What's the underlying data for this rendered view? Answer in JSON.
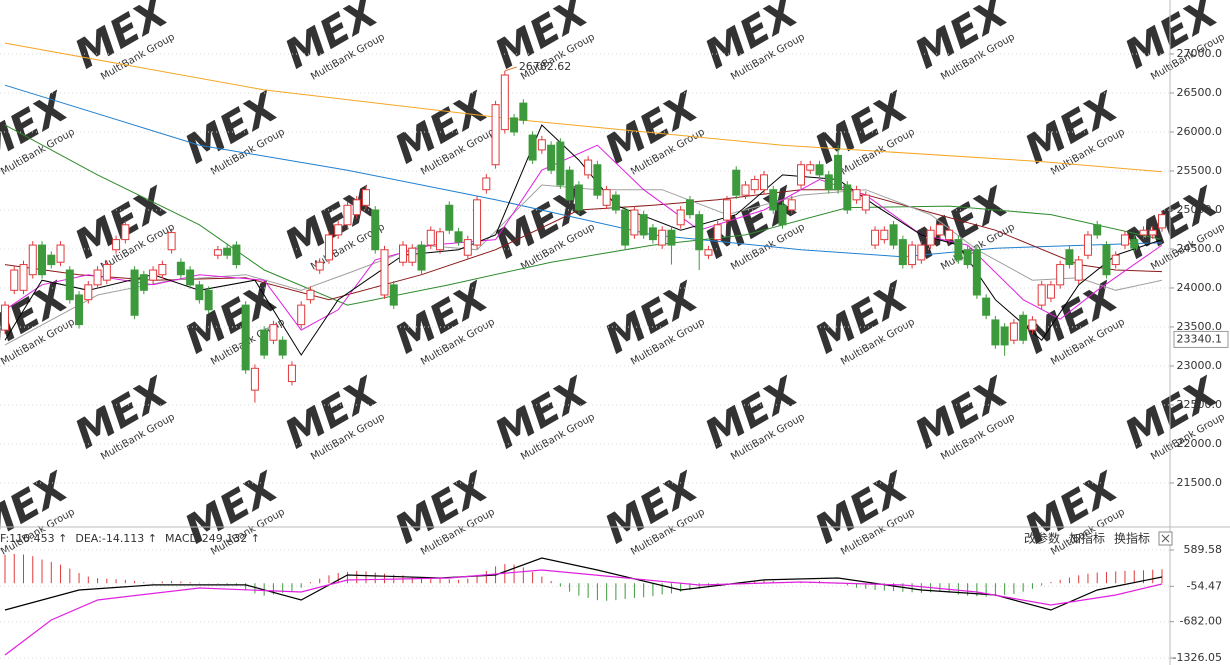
{
  "chart_data": [
    {
      "type": "candlestick",
      "up_color": "#e0393b",
      "down_color": "#3c9a3c",
      "grid": true,
      "ylim": [
        20961,
        27692
      ],
      "yticks": [
        {
          "value": 27000,
          "label": "27000.0"
        },
        {
          "value": 26500,
          "label": "26500.0"
        },
        {
          "value": 26000,
          "label": "26000.0"
        },
        {
          "value": 25500,
          "label": "25500.0"
        },
        {
          "value": 25000,
          "label": "25000.0"
        },
        {
          "value": 24500,
          "label": "24500.0"
        },
        {
          "value": 24000,
          "label": "24000.0"
        },
        {
          "value": 23500,
          "label": "23500.0"
        },
        {
          "value": 23000,
          "label": "23000.0"
        },
        {
          "value": 22500,
          "label": "22500.0"
        },
        {
          "value": 22000,
          "label": "22000.0"
        },
        {
          "value": 21500,
          "label": "21500.0"
        }
      ],
      "last_price": 23340.1,
      "open": [
        23460,
        23970,
        23970,
        24170,
        24550,
        24420,
        24330,
        24230,
        23910,
        23850,
        24040,
        24100,
        24490,
        24620,
        24230,
        24170,
        24100,
        24170,
        24490,
        24330,
        24230,
        24040,
        23970,
        24420,
        24510,
        24550,
        23780,
        22690,
        23460,
        23330,
        23330,
        22800,
        23530,
        23850,
        24230,
        24360,
        24680,
        24810,
        24940,
        25060,
        25000,
        23910,
        24040,
        24330,
        24330,
        24550,
        24550,
        24490,
        25060,
        24720,
        24420,
        24550,
        25260,
        25580,
        26030,
        26180,
        26370,
        25960,
        25770,
        25830,
        25870,
        25510,
        25320,
        25450,
        25580,
        25060,
        25190,
        25000,
        24680,
        24940,
        24770,
        24550,
        24740,
        24810,
        25130,
        24940,
        24420,
        24620,
        24870,
        25510,
        25190,
        25260,
        25260,
        25260,
        25060,
        25000,
        25320,
        25510,
        25580,
        25450,
        25700,
        25320,
        25130,
        25000,
        24550,
        24620,
        24810,
        24620,
        24300,
        24360,
        24550,
        24680,
        24620,
        24620,
        24490,
        24490,
        23870,
        23590,
        23500,
        23330,
        23650,
        23460,
        23780,
        23870,
        24040,
        24490,
        24100,
        24420,
        24810,
        24550,
        24300,
        24550,
        24620,
        24680,
        24680,
        24770
      ],
      "high": [
        23830,
        24280,
        24350,
        24600,
        24600,
        24470,
        24600,
        24280,
        23960,
        24090,
        24280,
        24350,
        24670,
        24860,
        24280,
        24220,
        24280,
        24350,
        24760,
        24380,
        24280,
        24090,
        24020,
        24540,
        24560,
        24600,
        23830,
        23020,
        23510,
        23580,
        23380,
        23060,
        23830,
        24020,
        24380,
        24730,
        24860,
        25110,
        25180,
        25310,
        25050,
        24540,
        24090,
        24600,
        24560,
        24600,
        24790,
        24770,
        25110,
        24770,
        24670,
        25180,
        25460,
        26400,
        26782.62,
        26230,
        26420,
        26010,
        25950,
        25880,
        25920,
        25560,
        25370,
        25690,
        25630,
        25310,
        25240,
        25050,
        25050,
        24990,
        24820,
        24790,
        24790,
        25050,
        25180,
        24990,
        24540,
        24860,
        25180,
        25560,
        25370,
        25440,
        25500,
        25310,
        25110,
        25180,
        25630,
        25630,
        25630,
        25500,
        25830,
        25370,
        25310,
        25240,
        24790,
        24790,
        24860,
        24670,
        24600,
        24600,
        24790,
        24860,
        24790,
        24670,
        24540,
        24540,
        23920,
        23640,
        23550,
        23600,
        23700,
        23640,
        24090,
        24090,
        24350,
        24540,
        24410,
        24730,
        24860,
        24600,
        24470,
        24730,
        24670,
        24790,
        24790,
        24990
      ],
      "low": [
        23410,
        23920,
        23920,
        24120,
        24120,
        24250,
        24280,
        23800,
        23480,
        23800,
        23990,
        24050,
        24440,
        24570,
        23600,
        23920,
        24050,
        24120,
        24440,
        24120,
        23990,
        23800,
        23670,
        24370,
        24370,
        24250,
        22900,
        22530,
        23090,
        23280,
        23090,
        22750,
        23480,
        23800,
        24180,
        24310,
        24630,
        24760,
        24890,
        25010,
        24440,
        23860,
        23730,
        24280,
        24280,
        24180,
        24500,
        24440,
        24690,
        24540,
        24370,
        24500,
        25210,
        25530,
        25980,
        25950,
        26100,
        25590,
        25720,
        25460,
        25270,
        25080,
        24950,
        25400,
        25140,
        25010,
        24950,
        24500,
        24630,
        24630,
        24570,
        24500,
        24300,
        24760,
        24890,
        24230,
        24370,
        24570,
        24820,
        25140,
        25140,
        25210,
        25210,
        24950,
        24760,
        24950,
        25270,
        25460,
        25400,
        25210,
        25210,
        24950,
        25080,
        24950,
        24500,
        24570,
        24500,
        24250,
        24250,
        24310,
        24500,
        24630,
        24570,
        24310,
        24250,
        23860,
        23600,
        23220,
        23130,
        23280,
        23280,
        23410,
        23730,
        23820,
        23990,
        24250,
        24050,
        24370,
        24630,
        24120,
        24250,
        24500,
        24460,
        24630,
        24630,
        24720
      ],
      "close": [
        23780,
        24230,
        24300,
        24550,
        24170,
        24300,
        24550,
        23850,
        23530,
        24040,
        24230,
        24300,
        24620,
        24810,
        23650,
        23970,
        24230,
        24300,
        24710,
        24170,
        24040,
        23850,
        23720,
        24490,
        24420,
        24300,
        22950,
        22970,
        23140,
        23530,
        23140,
        23010,
        23780,
        23970,
        24330,
        24680,
        24810,
        25060,
        25130,
        25260,
        24490,
        24490,
        23780,
        24550,
        24510,
        24230,
        24740,
        24720,
        24740,
        24590,
        24620,
        25130,
        25410,
        26350,
        26730,
        26000,
        26150,
        25640,
        25900,
        25510,
        25320,
        25130,
        25000,
        25640,
        25190,
        25260,
        25000,
        24550,
        25000,
        24680,
        24620,
        24740,
        24550,
        25000,
        24940,
        24490,
        24490,
        24810,
        25130,
        25190,
        25320,
        25390,
        25450,
        25000,
        24810,
        25130,
        25580,
        25580,
        25450,
        25260,
        25260,
        25000,
        25260,
        25190,
        24740,
        24740,
        24550,
        24300,
        24550,
        24550,
        24740,
        24810,
        24740,
        24360,
        24300,
        23910,
        23650,
        23270,
        23270,
        23550,
        23330,
        23590,
        24040,
        24040,
        24300,
        24300,
        24360,
        24680,
        24680,
        24170,
        24420,
        24680,
        24510,
        24740,
        24740,
        24940
      ],
      "lines": [
        {
          "color": "#f5a623",
          "x": [
            0,
            28,
            56,
            84,
            112,
            125
          ],
          "values": [
            27140,
            26540,
            26150,
            25830,
            25620,
            25490
          ]
        },
        {
          "color": "#1f7fd0",
          "x": [
            0,
            21,
            37,
            53,
            70,
            86,
            97,
            107,
            125
          ],
          "values": [
            26600,
            25830,
            25510,
            25130,
            24680,
            24490,
            24400,
            24510,
            24580
          ]
        },
        {
          "color": "#2e8b2e",
          "x": [
            0,
            10,
            21,
            28,
            37,
            48,
            59,
            70,
            80,
            91,
            102,
            113,
            125
          ],
          "values": [
            26090,
            25450,
            24810,
            24230,
            23780,
            24040,
            24330,
            24550,
            24680,
            25030,
            25050,
            24940,
            24620
          ]
        },
        {
          "color": "#8b1a1a",
          "x": [
            0,
            8,
            16,
            26,
            35,
            45,
            53,
            62,
            70,
            77,
            86,
            91,
            99,
            107,
            116,
            120,
            125
          ],
          "values": [
            24300,
            24170,
            24100,
            24130,
            23850,
            24170,
            24490,
            25000,
            25060,
            25130,
            25260,
            25260,
            25000,
            24740,
            24300,
            24230,
            24210
          ]
        },
        {
          "color": "#a0a0a0",
          "x": [
            0,
            5,
            10,
            18,
            26,
            32,
            38,
            45,
            51,
            58,
            64,
            71,
            78,
            86,
            93,
            100,
            105,
            111,
            116,
            120,
            125
          ],
          "values": [
            23270,
            23590,
            23910,
            24100,
            24170,
            23970,
            24230,
            24550,
            24490,
            25320,
            25260,
            25260,
            24940,
            25190,
            25260,
            24940,
            24490,
            24100,
            24130,
            23970,
            24100
          ]
        },
        {
          "color": "#e020e0",
          "x": [
            0,
            4,
            9,
            16,
            21,
            28,
            32,
            36,
            40,
            46,
            53,
            58,
            64,
            69,
            75,
            82,
            88,
            93,
            99,
            104,
            110,
            114,
            118,
            125
          ],
          "values": [
            23720,
            24040,
            24170,
            24040,
            24170,
            24100,
            23460,
            23720,
            24360,
            24550,
            24620,
            25510,
            25830,
            25260,
            24740,
            25000,
            25390,
            25190,
            24680,
            24550,
            23850,
            23600,
            23970,
            24550
          ]
        },
        {
          "color": "#000000",
          "x": [
            0,
            4,
            9,
            16,
            21,
            27,
            32,
            36,
            43,
            49,
            53,
            58,
            62,
            66,
            73,
            79,
            84,
            90,
            94,
            99,
            103,
            107,
            112,
            116,
            120,
            125
          ],
          "values": [
            23330,
            24100,
            23970,
            24170,
            23970,
            24100,
            23140,
            23850,
            24420,
            24490,
            24680,
            26090,
            25640,
            25060,
            24740,
            24940,
            25450,
            25390,
            25060,
            24680,
            24550,
            23850,
            23330,
            24040,
            24420,
            24620
          ]
        }
      ]
    },
    {
      "type": "macd",
      "up_color": "#e0393b",
      "down_color": "#3c9a3c",
      "grid": true,
      "header": [
        {
          "text": "F:110.453 ↑",
          "color": "#000000"
        },
        {
          "text": "DEA:-14.113 ↑",
          "color": "#e020e0"
        },
        {
          "text": "MACD:249.132 ↑",
          "color": "#666666"
        }
      ],
      "ylim": [
        -1432,
        944
      ],
      "yticks": [
        589.58,
        -54.47,
        {
          "value": -682,
          "label": "-682.00"
        },
        -1326.05
      ],
      "values": [
        500,
        520,
        510,
        480,
        420,
        380,
        330,
        260,
        180,
        120,
        90,
        80,
        70,
        60,
        40,
        20,
        10,
        30,
        40,
        30,
        20,
        10,
        5,
        -10,
        -20,
        -40,
        -120,
        -180,
        -220,
        -200,
        -170,
        -150,
        -80,
        20,
        80,
        140,
        180,
        200,
        220,
        210,
        190,
        170,
        150,
        140,
        120,
        100,
        90,
        80,
        70,
        60,
        80,
        150,
        220,
        300,
        340,
        330,
        280,
        200,
        120,
        40,
        -60,
        -150,
        -220,
        -260,
        -300,
        -310,
        -300,
        -280,
        -260,
        -250,
        -230,
        -200,
        -180,
        -150,
        -120,
        -100,
        -70,
        -40,
        -20,
        10,
        30,
        50,
        60,
        40,
        20,
        10,
        20,
        30,
        40,
        20,
        -10,
        -40,
        -80,
        -100,
        -120,
        -130,
        -140,
        -150,
        -160,
        -170,
        -160,
        -150,
        -170,
        -200,
        -220,
        -230,
        -240,
        -230,
        -210,
        -190,
        -150,
        -100,
        -40,
        20,
        60,
        100,
        140,
        170,
        190,
        200,
        210,
        220,
        230,
        230,
        240,
        249.132
      ],
      "series": [
        {
          "color": "#000000",
          "x": [
            0,
            8,
            16,
            26,
            32,
            37,
            47,
            53,
            58,
            64,
            73,
            82,
            90,
            99,
            107,
            113,
            118,
            125
          ],
          "values": [
            -474,
            -120,
            -30,
            -30,
            -297,
            146,
            93,
            146,
            448,
            235,
            -120,
            60,
            93,
            -120,
            -208,
            -474,
            -120,
            110.453
          ]
        },
        {
          "color": "#e020e0",
          "x": [
            0,
            5,
            10,
            21,
            32,
            37,
            48,
            58,
            66,
            75,
            86,
            97,
            105,
            113,
            120,
            125
          ],
          "values": [
            -1272,
            -652,
            -297,
            -84,
            -155,
            58,
            93,
            235,
            111,
            -31,
            22,
            -31,
            -155,
            -386,
            -208,
            -14.113
          ]
        }
      ]
    }
  ],
  "toolbar": {
    "buttons": [
      "改参数",
      "加指标",
      "换指标"
    ]
  },
  "watermark": {
    "logo": "MEX",
    "text": "MultiBank Group"
  }
}
